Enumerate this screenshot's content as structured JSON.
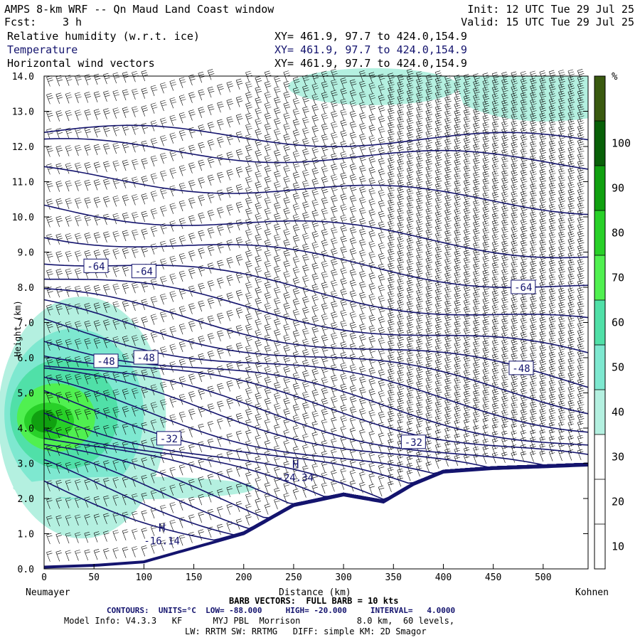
{
  "header": {
    "title": "AMPS 8-km WRF -- Qn Maud Land Coast window",
    "forecast_label": "Fcst:",
    "forecast_value": "3 h",
    "init": "Init: 12 UTC Tue 29 Jul 25",
    "valid": "Valid: 15 UTC Tue 29 Jul 25",
    "fields": [
      {
        "name": "Relative humidity (w.r.t. ice)",
        "xy": "XY= 461.9, 97.7 to 424.0,154.9"
      },
      {
        "name": "Temperature",
        "xy": "XY= 461.9, 97.7 to 424.0,154.9"
      },
      {
        "name": "Horizontal wind vectors",
        "xy": "XY= 461.9, 97.7 to 424.0,154.9"
      }
    ]
  },
  "chart_data": {
    "type": "contour-cross-section",
    "ylabel": "Height (km)",
    "xlabel": "Distance (km)",
    "xlim": [
      0,
      545
    ],
    "ylim": [
      0,
      14
    ],
    "x_ticks": [
      0,
      50,
      100,
      150,
      200,
      250,
      300,
      350,
      400,
      450,
      500
    ],
    "y_ticks": [
      "0.0",
      "1.0",
      "2.0",
      "3.0",
      "4.0",
      "5.0",
      "6.0",
      "7.0",
      "8.0",
      "9.0",
      "10.0",
      "11.0",
      "12.0",
      "13.0",
      "14.0"
    ],
    "left_end_label": "Neumayer",
    "right_end_label": "Kohnen",
    "colorbar": {
      "unit": "%",
      "ticks": [
        10,
        20,
        30,
        40,
        50,
        60,
        70,
        80,
        90,
        100
      ],
      "colors": [
        "#ffffff",
        "#ffffff",
        "#ffffff",
        "#b4f0e0",
        "#7ee8d0",
        "#50e0a8",
        "#50f050",
        "#28d028",
        "#10a010",
        "#086008",
        "#3a5a10"
      ]
    },
    "temperature_contours": {
      "units": "°C",
      "low": -88.0,
      "high": -20.0,
      "interval": 4.0,
      "labels": [
        {
          "value": "-64",
          "x": 52,
          "y": 8.6
        },
        {
          "value": "-64",
          "x": 100,
          "y": 8.45
        },
        {
          "value": "-64",
          "x": 480,
          "y": 8.0
        },
        {
          "value": "-48",
          "x": 62,
          "y": 5.9
        },
        {
          "value": "-48",
          "x": 102,
          "y": 6.0
        },
        {
          "value": "-48",
          "x": 478,
          "y": 5.7
        },
        {
          "value": "-32",
          "x": 125,
          "y": 3.7
        },
        {
          "value": "-32",
          "x": 370,
          "y": 3.6
        }
      ],
      "extrema": [
        {
          "type": "H",
          "value": "-24.34",
          "x": 252,
          "y": 2.5
        },
        {
          "type": "H",
          "value": "-16.14",
          "x": 118,
          "y": 0.7
        }
      ]
    },
    "terrain_km": [
      [
        0,
        0.05
      ],
      [
        50,
        0.1
      ],
      [
        100,
        0.2
      ],
      [
        150,
        0.6
      ],
      [
        200,
        1.0
      ],
      [
        250,
        1.8
      ],
      [
        300,
        2.1
      ],
      [
        340,
        1.9
      ],
      [
        370,
        2.4
      ],
      [
        400,
        2.75
      ],
      [
        450,
        2.85
      ],
      [
        500,
        2.9
      ],
      [
        545,
        2.95
      ]
    ]
  },
  "footer": {
    "barb": "BARB VECTORS:  FULL BARB = 10 kts",
    "contours": "CONTOURS:  UNITS=°C  LOW= -88.000     HIGH= -20.000     INTERVAL=   4.0000",
    "model1": "Model Info: V4.3.3   KF      MYJ PBL  Morrison           8.0 km,  60 levels,",
    "model2": "LW: RRTM SW: RRTMG   DIFF: simple KM: 2D Smagor"
  }
}
